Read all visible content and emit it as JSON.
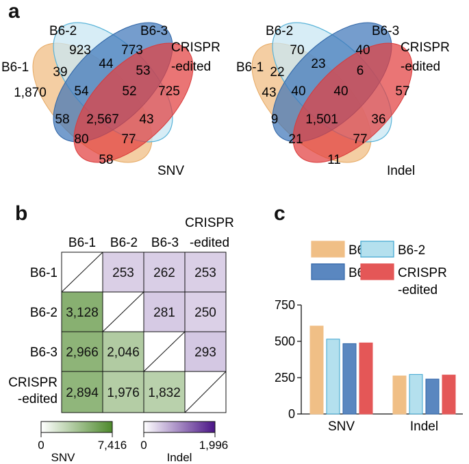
{
  "panels": {
    "a": "a",
    "b": "b",
    "c": "c"
  },
  "venn": [
    {
      "sets": [
        "B6-1",
        "B6-2",
        "B6-3",
        "CRISPR",
        "-edited"
      ],
      "type_label": "SNV",
      "region_values": [
        "1,870",
        "923",
        "773",
        "725",
        "39",
        "44",
        "53",
        "54",
        "52",
        "58",
        "2,567",
        "43",
        "80",
        "77",
        "58"
      ]
    },
    {
      "sets": [
        "B6-1",
        "B6-2",
        "B6-3",
        "CRISPR",
        "-edited"
      ],
      "type_label": "Indel",
      "region_values": [
        "43",
        "70",
        "40",
        "57",
        "22",
        "23",
        "6",
        "40",
        "40",
        "9",
        "1,501",
        "36",
        "21",
        "77",
        "11"
      ]
    }
  ],
  "matrix": {
    "col_header_top": "CRISPR",
    "col_headers": [
      "B6-1",
      "B6-2",
      "B6-3",
      "-edited"
    ],
    "row_headers": [
      "B6-1",
      "B6-2",
      "B6-3",
      "CRISPR",
      "-edited"
    ],
    "upper_cells": [
      {
        "row": 0,
        "col": 1,
        "value": "253",
        "num": 253
      },
      {
        "row": 0,
        "col": 2,
        "value": "262",
        "num": 262
      },
      {
        "row": 0,
        "col": 3,
        "value": "253",
        "num": 253
      },
      {
        "row": 1,
        "col": 2,
        "value": "281",
        "num": 281
      },
      {
        "row": 1,
        "col": 3,
        "value": "250",
        "num": 250
      },
      {
        "row": 2,
        "col": 3,
        "value": "293",
        "num": 293
      }
    ],
    "lower_cells": [
      {
        "row": 1,
        "col": 0,
        "value": "3,128",
        "num": 3128
      },
      {
        "row": 2,
        "col": 0,
        "value": "2,966",
        "num": 2966
      },
      {
        "row": 2,
        "col": 1,
        "value": "2,046",
        "num": 2046
      },
      {
        "row": 3,
        "col": 0,
        "value": "2,894",
        "num": 2894
      },
      {
        "row": 3,
        "col": 1,
        "value": "1,976",
        "num": 1976
      },
      {
        "row": 3,
        "col": 2,
        "value": "1,832",
        "num": 1832
      }
    ],
    "snv_scale": {
      "min_label": "0",
      "max_label": "7,416",
      "max": 7416,
      "label": "SNV",
      "color_low": "#ffffff",
      "color_high": "#4e8a2c"
    },
    "indel_scale": {
      "min_label": "0",
      "max_label": "1,996",
      "max": 1996,
      "label": "Indel",
      "color_low": "#ffffff",
      "color_high": "#4a1486"
    }
  },
  "chart_data": {
    "type": "bar",
    "categories": [
      "SNV",
      "Indel"
    ],
    "series": [
      {
        "name": "B6-1",
        "values": [
          605,
          262
        ],
        "color": "#f0bf86",
        "stroke": "#f0bf86"
      },
      {
        "name": "B6-2",
        "values": [
          515,
          272
        ],
        "color": "#b4e0ee",
        "stroke": "#3aa3cf"
      },
      {
        "name": "B6-3",
        "values": [
          484,
          240
        ],
        "color": "#5a87c0",
        "stroke": "#2f64a8"
      },
      {
        "name": "CRISPR -edited",
        "values": [
          489,
          268
        ],
        "color": "#e45757",
        "stroke": "#e45757"
      }
    ],
    "legend_lines": [
      [
        "B6-1"
      ],
      [
        "B6-2"
      ],
      [
        "B6-3"
      ],
      [
        "CRISPR",
        "-edited"
      ]
    ],
    "yticks": [
      "0",
      "250",
      "500",
      "750"
    ],
    "ylim": [
      0,
      750
    ],
    "legend": "top"
  }
}
